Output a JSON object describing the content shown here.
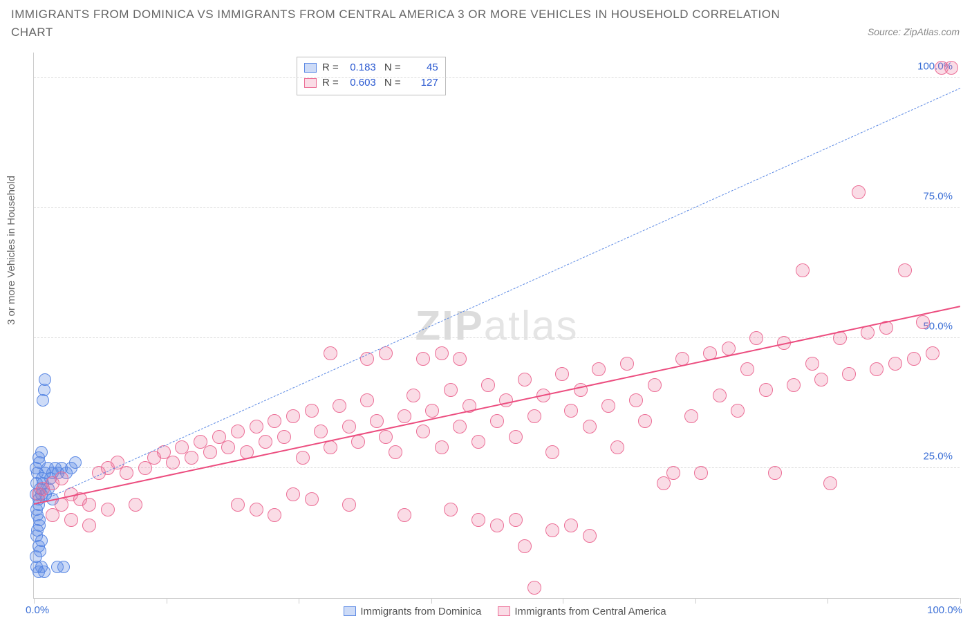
{
  "title": "IMMIGRANTS FROM DOMINICA VS IMMIGRANTS FROM CENTRAL AMERICA 3 OR MORE VEHICLES IN HOUSEHOLD CORRELATION CHART",
  "source": "Source: ZipAtlas.com",
  "ylabel": "3 or more Vehicles in Household",
  "watermark_a": "ZIP",
  "watermark_b": "atlas",
  "chart": {
    "type": "scatter",
    "xlim": [
      0,
      100
    ],
    "ylim": [
      0,
      105
    ],
    "xtick_positions": [
      0,
      14.3,
      28.6,
      42.9,
      57.1,
      71.4,
      85.7,
      100
    ],
    "gridlines_y": [
      25,
      50,
      75,
      100
    ],
    "yticklabels": [
      {
        "y": 25,
        "label": "25.0%"
      },
      {
        "y": 50,
        "label": "50.0%"
      },
      {
        "y": 75,
        "label": "75.0%"
      },
      {
        "y": 100,
        "label": "100.0%"
      }
    ],
    "x_start_label": "0.0%",
    "x_end_label": "100.0%",
    "background_color": "#ffffff",
    "grid_color": "#dddddd"
  },
  "series": [
    {
      "name": "Immigrants from Dominica",
      "color_fill": "rgba(89,137,229,0.30)",
      "color_stroke": "#5a88e4",
      "marker_radius": 9,
      "R": "0.183",
      "N": "45",
      "trend": {
        "x1": 0,
        "y1": 18,
        "x2": 100,
        "y2": 98,
        "dash": "6,5",
        "width": 1.2,
        "color": "#5a88e4"
      },
      "points": [
        [
          0.2,
          20
        ],
        [
          0.3,
          22
        ],
        [
          0.5,
          18
        ],
        [
          0.4,
          16
        ],
        [
          0.6,
          14
        ],
        [
          0.3,
          12
        ],
        [
          0.5,
          10
        ],
        [
          0.2,
          8
        ],
        [
          0.7,
          9
        ],
        [
          0.8,
          11
        ],
        [
          0.4,
          13
        ],
        [
          0.6,
          15
        ],
        [
          0.3,
          17
        ],
        [
          0.5,
          19
        ],
        [
          0.7,
          21
        ],
        [
          0.9,
          23
        ],
        [
          0.4,
          24
        ],
        [
          0.2,
          25
        ],
        [
          0.6,
          26
        ],
        [
          0.8,
          20
        ],
        [
          1.0,
          22
        ],
        [
          1.2,
          24
        ],
        [
          1.5,
          25
        ],
        [
          1.8,
          23
        ],
        [
          2.0,
          24
        ],
        [
          2.3,
          25
        ],
        [
          2.6,
          24
        ],
        [
          3.0,
          25
        ],
        [
          3.5,
          24
        ],
        [
          4.0,
          25
        ],
        [
          4.5,
          26
        ],
        [
          0.3,
          6
        ],
        [
          0.5,
          5
        ],
        [
          0.8,
          6
        ],
        [
          1.1,
          5
        ],
        [
          2.5,
          6
        ],
        [
          3.2,
          6
        ],
        [
          1.0,
          38
        ],
        [
          1.1,
          40
        ],
        [
          1.2,
          42
        ],
        [
          0.5,
          27
        ],
        [
          0.8,
          28
        ],
        [
          1.3,
          20
        ],
        [
          1.6,
          21
        ],
        [
          2.0,
          19
        ]
      ]
    },
    {
      "name": "Immigrants from Central America",
      "color_fill": "rgba(236,110,150,0.24)",
      "color_stroke": "#ec6e96",
      "marker_radius": 10,
      "R": "0.603",
      "N": "127",
      "trend": {
        "x1": 0,
        "y1": 18,
        "x2": 100,
        "y2": 56,
        "dash": "none",
        "width": 2.5,
        "color": "#ec4d7f"
      },
      "points": [
        [
          0.5,
          20
        ],
        [
          1,
          21
        ],
        [
          2,
          22
        ],
        [
          3,
          23
        ],
        [
          4,
          20
        ],
        [
          5,
          19
        ],
        [
          6,
          18
        ],
        [
          7,
          24
        ],
        [
          8,
          25
        ],
        [
          9,
          26
        ],
        [
          10,
          24
        ],
        [
          11,
          18
        ],
        [
          12,
          25
        ],
        [
          13,
          27
        ],
        [
          14,
          28
        ],
        [
          15,
          26
        ],
        [
          16,
          29
        ],
        [
          17,
          27
        ],
        [
          18,
          30
        ],
        [
          19,
          28
        ],
        [
          20,
          31
        ],
        [
          21,
          29
        ],
        [
          22,
          32
        ],
        [
          23,
          28
        ],
        [
          24,
          33
        ],
        [
          25,
          30
        ],
        [
          26,
          34
        ],
        [
          27,
          31
        ],
        [
          28,
          35
        ],
        [
          29,
          27
        ],
        [
          30,
          36
        ],
        [
          31,
          32
        ],
        [
          32,
          29
        ],
        [
          33,
          37
        ],
        [
          34,
          33
        ],
        [
          35,
          30
        ],
        [
          36,
          38
        ],
        [
          37,
          34
        ],
        [
          38,
          31
        ],
        [
          39,
          28
        ],
        [
          40,
          35
        ],
        [
          41,
          39
        ],
        [
          42,
          32
        ],
        [
          43,
          36
        ],
        [
          44,
          29
        ],
        [
          45,
          40
        ],
        [
          46,
          33
        ],
        [
          47,
          37
        ],
        [
          48,
          30
        ],
        [
          49,
          41
        ],
        [
          50,
          34
        ],
        [
          51,
          38
        ],
        [
          52,
          31
        ],
        [
          53,
          42
        ],
        [
          54,
          35
        ],
        [
          55,
          39
        ],
        [
          56,
          28
        ],
        [
          57,
          43
        ],
        [
          58,
          36
        ],
        [
          59,
          40
        ],
        [
          60,
          33
        ],
        [
          61,
          44
        ],
        [
          62,
          37
        ],
        [
          63,
          29
        ],
        [
          64,
          45
        ],
        [
          65,
          38
        ],
        [
          66,
          34
        ],
        [
          67,
          41
        ],
        [
          68,
          22
        ],
        [
          69,
          24
        ],
        [
          70,
          46
        ],
        [
          71,
          35
        ],
        [
          72,
          24
        ],
        [
          73,
          47
        ],
        [
          74,
          39
        ],
        [
          75,
          48
        ],
        [
          76,
          36
        ],
        [
          77,
          44
        ],
        [
          78,
          50
        ],
        [
          79,
          40
        ],
        [
          80,
          24
        ],
        [
          81,
          49
        ],
        [
          82,
          41
        ],
        [
          83,
          63
        ],
        [
          84,
          45
        ],
        [
          85,
          42
        ],
        [
          86,
          22
        ],
        [
          87,
          50
        ],
        [
          88,
          43
        ],
        [
          89,
          78
        ],
        [
          90,
          51
        ],
        [
          91,
          44
        ],
        [
          92,
          52
        ],
        [
          93,
          45
        ],
        [
          94,
          63
        ],
        [
          95,
          46
        ],
        [
          96,
          53
        ],
        [
          97,
          47
        ],
        [
          98,
          102
        ],
        [
          99,
          102
        ],
        [
          22,
          18
        ],
        [
          24,
          17
        ],
        [
          26,
          16
        ],
        [
          28,
          20
        ],
        [
          30,
          19
        ],
        [
          34,
          18
        ],
        [
          32,
          47
        ],
        [
          36,
          46
        ],
        [
          38,
          47
        ],
        [
          42,
          46
        ],
        [
          44,
          47
        ],
        [
          46,
          46
        ],
        [
          50,
          14
        ],
        [
          52,
          15
        ],
        [
          54,
          2
        ],
        [
          56,
          13
        ],
        [
          58,
          14
        ],
        [
          60,
          12
        ],
        [
          40,
          16
        ],
        [
          45,
          17
        ],
        [
          48,
          15
        ],
        [
          53,
          10
        ],
        [
          4,
          15
        ],
        [
          6,
          14
        ],
        [
          8,
          17
        ],
        [
          3,
          18
        ],
        [
          2,
          16
        ]
      ]
    }
  ]
}
